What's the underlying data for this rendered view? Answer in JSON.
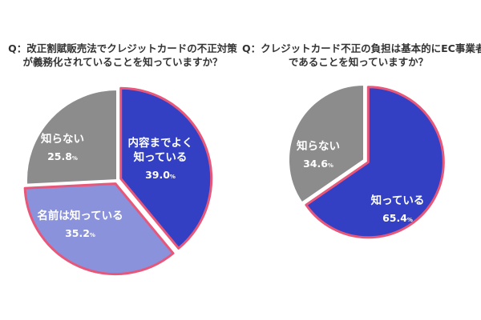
{
  "chart_data": [
    {
      "type": "pie",
      "title": "Q：改正割賦販売法でクレジットカードの不正対策が義務化されていることを知っていますか？",
      "title_lines": [
        "Q：改正割賦販売法でクレジットカードの不正対策",
        "が義務化されていることを知っていますか？"
      ],
      "start_angle_deg": 0,
      "direction": "clockwise",
      "highlighted_slices": [
        0,
        1
      ],
      "slices": [
        {
          "label": "内容までよく知っている",
          "label_lines": [
            "内容までよく",
            "知っている"
          ],
          "value": 39.0,
          "value_text": "39.0",
          "unit": "%",
          "color": "#3340c4"
        },
        {
          "label": "名前は知っている",
          "label_lines": [
            "名前は知っている"
          ],
          "value": 35.2,
          "value_text": "35.2",
          "unit": "%",
          "color": "#8a92dc"
        },
        {
          "label": "知らない",
          "label_lines": [
            "知らない"
          ],
          "value": 25.8,
          "value_text": "25.8",
          "unit": "%",
          "color": "#8c8c8c"
        }
      ]
    },
    {
      "type": "pie",
      "title": "Q：クレジットカード不正の負担は基本的にEC事業者であることを知っていますか？",
      "title_lines": [
        "Q：クレジットカード不正の負担は基本的にEC事業者",
        "であることを知っていますか？"
      ],
      "start_angle_deg": 0,
      "direction": "clockwise",
      "highlighted_slices": [
        0
      ],
      "slices": [
        {
          "label": "知っている",
          "label_lines": [
            "知っている"
          ],
          "value": 65.4,
          "value_text": "65.4",
          "unit": "%",
          "color": "#3340c4"
        },
        {
          "label": "知らない",
          "label_lines": [
            "知らない"
          ],
          "value": 34.6,
          "value_text": "34.6",
          "unit": "%",
          "color": "#8c8c8c"
        }
      ]
    }
  ],
  "colors": {
    "highlight_border": "#e8577a",
    "separator": "#ffffff",
    "label_text": "#ffffff",
    "title_text": "#333333"
  }
}
